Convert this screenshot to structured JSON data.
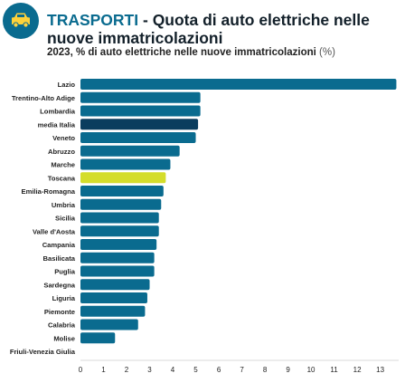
{
  "header": {
    "brand": "TRASPORTI",
    "separator": " - ",
    "title": "Quota di auto elettriche nelle nuove immatricolazioni",
    "subtitle": "2023, % di auto elettriche nelle nuove immatricolazioni",
    "unit": "(%)",
    "logo_icon": "car-icon"
  },
  "colors": {
    "bar_default": "#0a6b8f",
    "bar_average": "#0b3d5e",
    "bar_highlight": "#d4dd2b",
    "brand": "#0a6b8f"
  },
  "chart_data": {
    "type": "bar",
    "orientation": "horizontal",
    "categories": [
      "Lazio",
      "Trentino-Alto Adige",
      "Lombardia",
      "media Italia",
      "Veneto",
      "Abruzzo",
      "Marche",
      "Toscana",
      "Emilia-Romagna",
      "Umbria",
      "Sicilia",
      "Valle d'Aosta",
      "Campania",
      "Basilicata",
      "Puglia",
      "Sardegna",
      "Liguria",
      "Piemonte",
      "Calabria",
      "Molise",
      "Friuli-Venezia Giulia"
    ],
    "values": [
      13.7,
      5.2,
      5.2,
      5.1,
      5.0,
      4.3,
      3.9,
      3.7,
      3.6,
      3.5,
      3.4,
      3.4,
      3.3,
      3.2,
      3.2,
      3.0,
      2.9,
      2.8,
      2.5,
      1.5,
      0
    ],
    "highlight": {
      "media Italia": "average",
      "Toscana": "highlight"
    },
    "xlim": [
      0,
      13.8
    ],
    "xticks": [
      0,
      1,
      2,
      3,
      4,
      5,
      6,
      7,
      8,
      9,
      10,
      11,
      12,
      13
    ],
    "xlabel": "",
    "ylabel": "",
    "grid": false
  }
}
